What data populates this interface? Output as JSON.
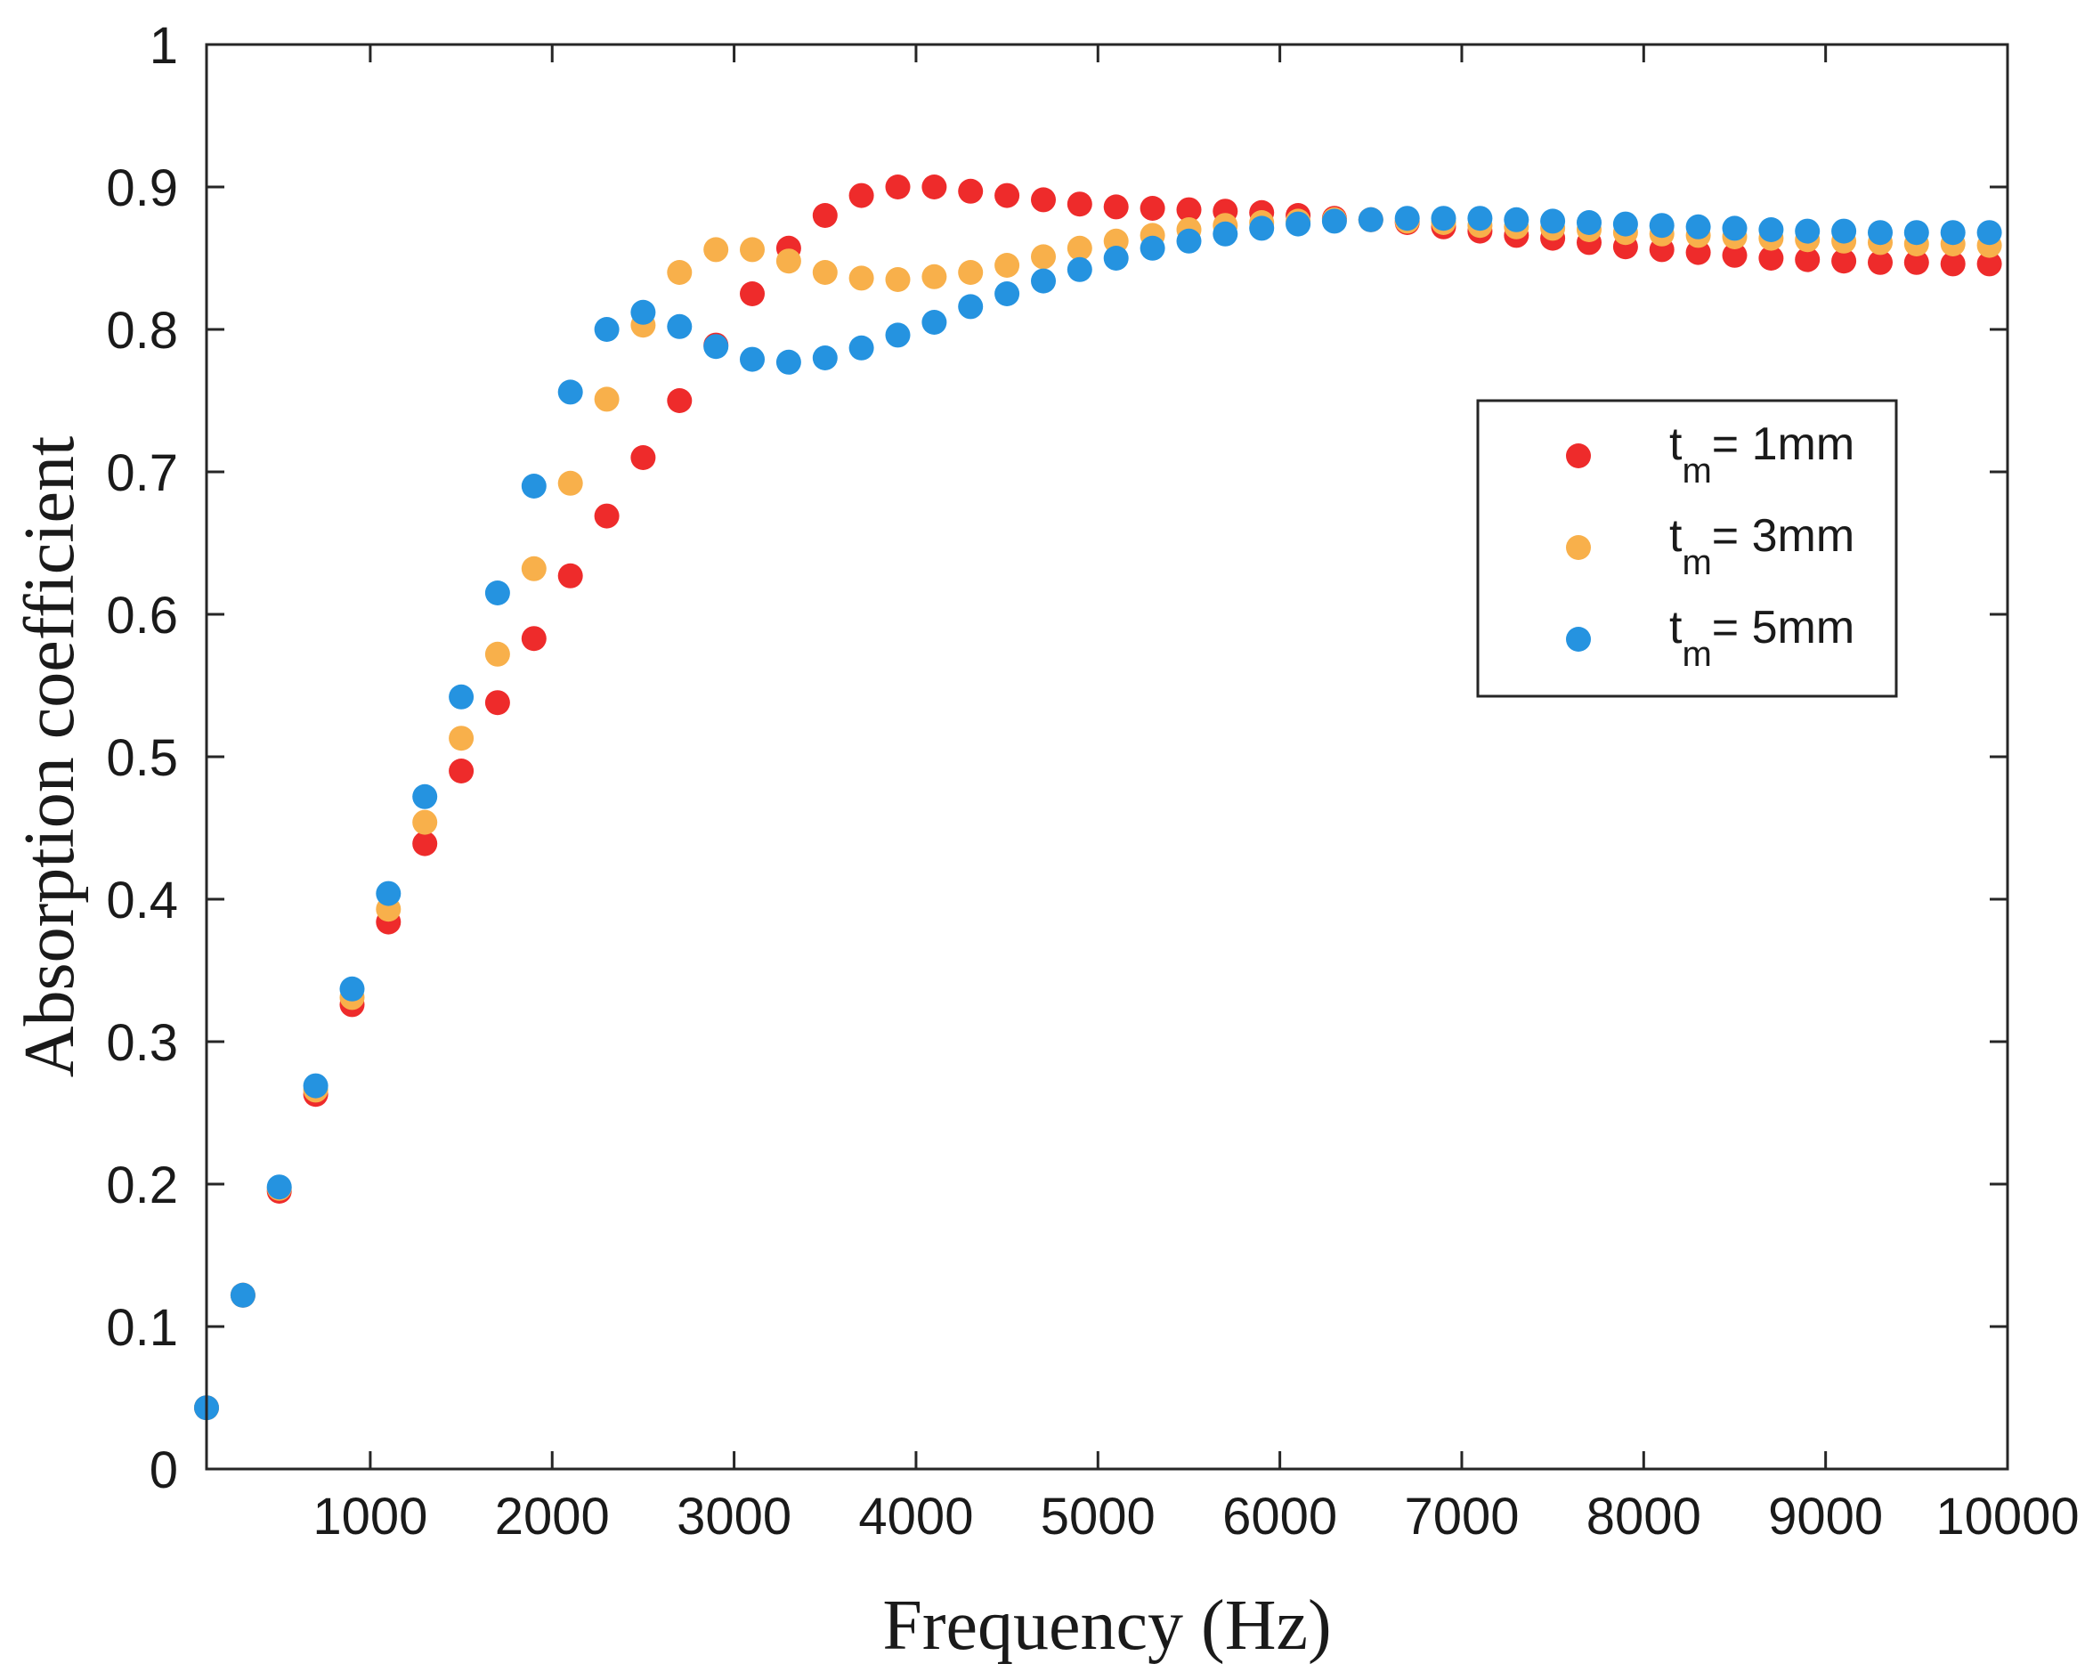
{
  "chart_data": {
    "type": "scatter",
    "title": "",
    "xlabel": "Frequency (Hz)",
    "ylabel": "Absorption coefficient",
    "xlim": [
      100,
      10000
    ],
    "ylim": [
      0,
      1
    ],
    "xticks": [
      1000,
      2000,
      3000,
      4000,
      5000,
      6000,
      7000,
      8000,
      9000,
      10000
    ],
    "yticks": [
      0,
      0.1,
      0.2,
      0.3,
      0.4,
      0.5,
      0.6,
      0.7,
      0.8,
      0.9,
      1
    ],
    "x": [
      100,
      300,
      500,
      700,
      900,
      1100,
      1300,
      1500,
      1700,
      1900,
      2100,
      2300,
      2500,
      2700,
      2900,
      3100,
      3300,
      3500,
      3700,
      3900,
      4100,
      4300,
      4500,
      4700,
      4900,
      5100,
      5300,
      5500,
      5700,
      5900,
      6100,
      6300,
      6500,
      6700,
      6900,
      7100,
      7300,
      7500,
      7700,
      7900,
      8100,
      8300,
      8500,
      8700,
      8900,
      9100,
      9300,
      9500,
      9700,
      9900
    ],
    "legend_position": "right",
    "series": [
      {
        "name": "t_m = 1mm",
        "legend_main": "t",
        "legend_sub": "m",
        "legend_rest": "= 1mm",
        "color": "#EE2B2B",
        "values": [
          0.043,
          0.122,
          0.195,
          0.263,
          0.326,
          0.384,
          0.439,
          0.49,
          0.538,
          0.583,
          0.627,
          0.669,
          0.71,
          0.75,
          0.789,
          0.825,
          0.857,
          0.88,
          0.894,
          0.9,
          0.9,
          0.897,
          0.894,
          0.891,
          0.888,
          0.886,
          0.885,
          0.884,
          0.883,
          0.882,
          0.88,
          0.878,
          0.877,
          0.875,
          0.872,
          0.869,
          0.866,
          0.864,
          0.861,
          0.858,
          0.856,
          0.854,
          0.852,
          0.85,
          0.849,
          0.848,
          0.847,
          0.847,
          0.846,
          0.846
        ]
      },
      {
        "name": "t_m = 3mm",
        "legend_main": "t",
        "legend_sub": "m",
        "legend_rest": "= 3mm",
        "color": "#F8B04B",
        "values": [
          0.043,
          0.122,
          0.197,
          0.266,
          0.331,
          0.393,
          0.454,
          0.513,
          0.572,
          0.632,
          0.692,
          0.751,
          0.803,
          0.84,
          0.856,
          0.856,
          0.848,
          0.84,
          0.836,
          0.835,
          0.837,
          0.84,
          0.845,
          0.851,
          0.857,
          0.862,
          0.866,
          0.87,
          0.873,
          0.875,
          0.876,
          0.877,
          0.877,
          0.876,
          0.875,
          0.873,
          0.872,
          0.871,
          0.87,
          0.868,
          0.867,
          0.866,
          0.865,
          0.864,
          0.863,
          0.862,
          0.861,
          0.86,
          0.86,
          0.859
        ]
      },
      {
        "name": "t_m = 5mm",
        "legend_main": "t",
        "legend_sub": "m",
        "legend_rest": "= 5mm",
        "color": "#2593E0",
        "values": [
          0.043,
          0.122,
          0.198,
          0.269,
          0.337,
          0.404,
          0.472,
          0.542,
          0.615,
          0.69,
          0.756,
          0.8,
          0.812,
          0.802,
          0.788,
          0.779,
          0.777,
          0.78,
          0.787,
          0.796,
          0.805,
          0.816,
          0.825,
          0.834,
          0.842,
          0.85,
          0.857,
          0.862,
          0.867,
          0.871,
          0.874,
          0.876,
          0.877,
          0.878,
          0.878,
          0.878,
          0.877,
          0.876,
          0.875,
          0.874,
          0.873,
          0.872,
          0.871,
          0.87,
          0.869,
          0.869,
          0.868,
          0.868,
          0.868,
          0.868
        ]
      }
    ]
  }
}
